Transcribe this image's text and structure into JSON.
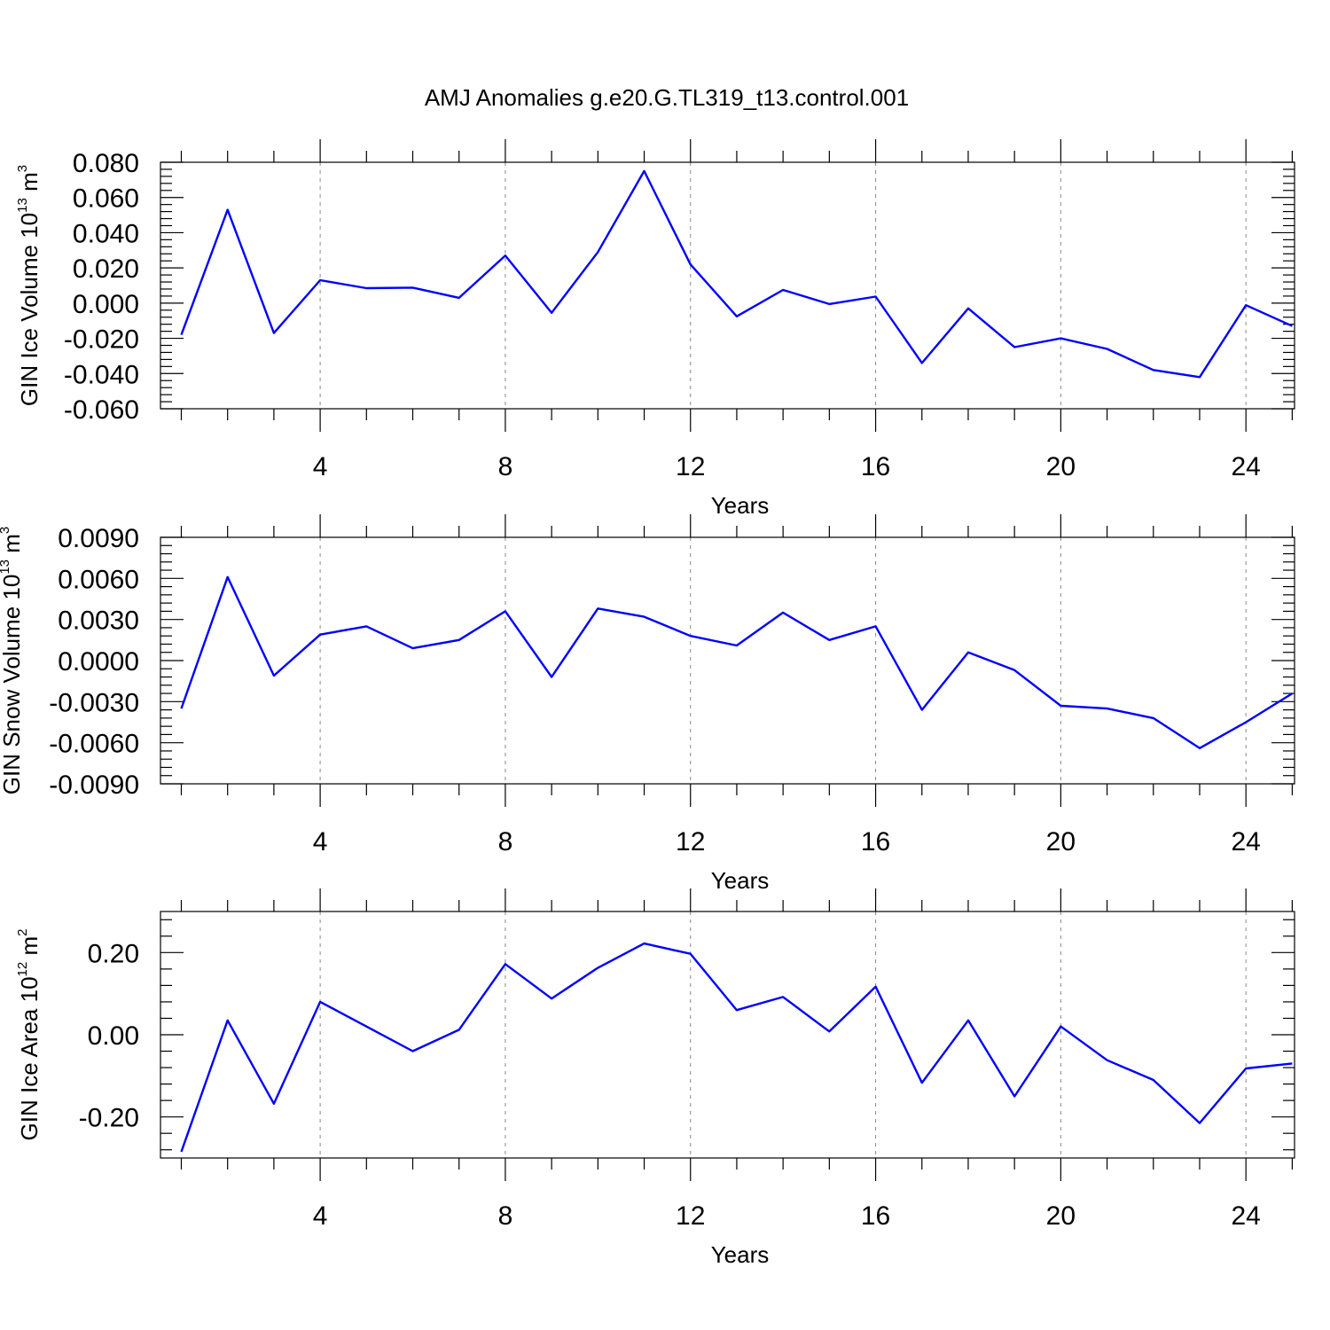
{
  "title": "AMJ Anomalies g.e20.G.TL319_t13.control.001",
  "colors": {
    "series": "#0000ff",
    "grid": "#888888",
    "axis": "#000000"
  },
  "chart_data": [
    {
      "type": "line",
      "id": "ice-volume",
      "xlabel": "Years",
      "ylabel_main": "GIN Ice Volume 10",
      "ylabel_exp": "13",
      "ylabel_unit": " m",
      "ylabel_unit_exp": "3",
      "xlim": [
        1,
        25
      ],
      "ylim": [
        -0.06,
        0.08
      ],
      "x_ticks": [
        4,
        8,
        12,
        16,
        20,
        24
      ],
      "x_tick_labels": [
        "4",
        "8",
        "12",
        "16",
        "20",
        "24"
      ],
      "y_ticks": [
        0.08,
        0.06,
        0.04,
        0.02,
        0.0,
        -0.02,
        -0.04,
        -0.06
      ],
      "y_tick_labels": [
        "0.080",
        "0.060",
        "0.040",
        "0.020",
        "0.000",
        "-0.020",
        "-0.040",
        "-0.060"
      ],
      "grid_x": [
        4,
        8,
        12,
        16,
        20,
        24
      ],
      "x": [
        1,
        2,
        3,
        4,
        5,
        6,
        7,
        8,
        9,
        10,
        11,
        12,
        13,
        14,
        15,
        16,
        17,
        18,
        19,
        20,
        21,
        22,
        23,
        24,
        25
      ],
      "values": [
        -0.018,
        0.053,
        -0.017,
        0.013,
        0.0085,
        0.0088,
        0.003,
        0.027,
        -0.0055,
        0.029,
        0.075,
        0.022,
        -0.0075,
        0.0075,
        -0.0005,
        0.0037,
        -0.034,
        -0.003,
        -0.025,
        -0.02,
        -0.026,
        -0.038,
        -0.042,
        -0.0012,
        -0.013
      ]
    },
    {
      "type": "line",
      "id": "snow-volume",
      "xlabel": "Years",
      "ylabel_main": "GIN Snow Volume 10",
      "ylabel_exp": "13",
      "ylabel_unit": " m",
      "ylabel_unit_exp": "3",
      "xlim": [
        1,
        25
      ],
      "ylim": [
        -0.009,
        0.009
      ],
      "x_ticks": [
        4,
        8,
        12,
        16,
        20,
        24
      ],
      "x_tick_labels": [
        "4",
        "8",
        "12",
        "16",
        "20",
        "24"
      ],
      "y_ticks": [
        0.009,
        0.006,
        0.003,
        0.0,
        -0.003,
        -0.006,
        -0.009
      ],
      "y_tick_labels": [
        "0.0090",
        "0.0060",
        "0.0030",
        "0.0000",
        "-0.0030",
        "-0.0060",
        "-0.0090"
      ],
      "grid_x": [
        4,
        8,
        12,
        16,
        20,
        24
      ],
      "x": [
        1,
        2,
        3,
        4,
        5,
        6,
        7,
        8,
        9,
        10,
        11,
        12,
        13,
        14,
        15,
        16,
        17,
        18,
        19,
        20,
        21,
        22,
        23,
        24,
        25
      ],
      "values": [
        -0.0035,
        0.0061,
        -0.0011,
        0.0019,
        0.0025,
        0.0009,
        0.0015,
        0.0036,
        -0.0012,
        0.0038,
        0.0032,
        0.0018,
        0.0011,
        0.0035,
        0.0015,
        0.0025,
        -0.0036,
        0.0006,
        -0.0007,
        -0.0033,
        -0.0035,
        -0.0042,
        -0.0064,
        -0.0045,
        -0.0024
      ]
    },
    {
      "type": "line",
      "id": "ice-area",
      "xlabel": "Years",
      "ylabel_main": "GIN Ice Area 10",
      "ylabel_exp": "12",
      "ylabel_unit": " m",
      "ylabel_unit_exp": "2",
      "xlim": [
        1,
        25
      ],
      "ylim": [
        -0.3,
        0.3
      ],
      "x_ticks": [
        4,
        8,
        12,
        16,
        20,
        24
      ],
      "x_tick_labels": [
        "4",
        "8",
        "12",
        "16",
        "20",
        "24"
      ],
      "y_ticks": [
        0.2,
        0.0,
        -0.2
      ],
      "y_tick_labels": [
        "0.20",
        "0.00",
        "-0.20"
      ],
      "grid_x": [
        4,
        8,
        12,
        16,
        20,
        24
      ],
      "x": [
        1,
        2,
        3,
        4,
        5,
        6,
        7,
        8,
        9,
        10,
        11,
        12,
        13,
        14,
        15,
        16,
        17,
        18,
        19,
        20,
        21,
        22,
        23,
        24,
        25
      ],
      "values": [
        -0.285,
        0.035,
        -0.168,
        0.08,
        0.02,
        -0.04,
        0.012,
        0.172,
        0.088,
        0.163,
        0.222,
        0.197,
        0.06,
        0.092,
        0.008,
        0.117,
        -0.117,
        0.035,
        -0.15,
        0.02,
        -0.062,
        -0.11,
        -0.215,
        -0.082,
        -0.07
      ]
    }
  ]
}
